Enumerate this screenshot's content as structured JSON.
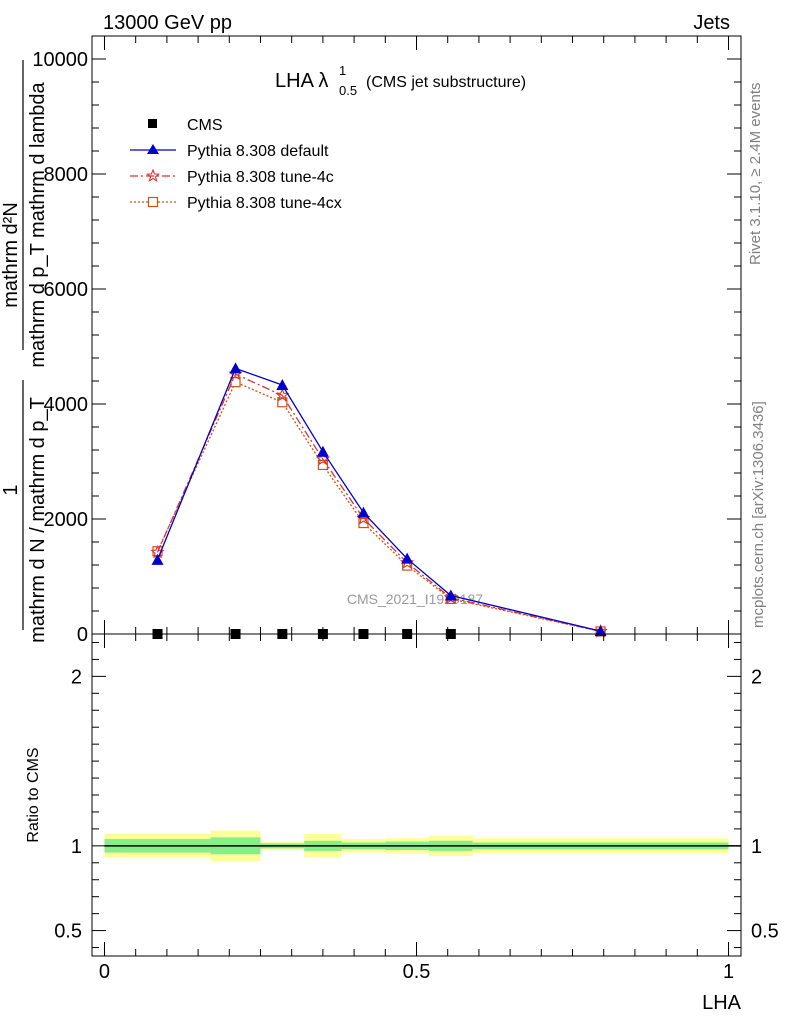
{
  "header": {
    "left": "13000 GeV pp",
    "right": "Jets"
  },
  "side_labels": {
    "rivet": "Rivet 3.1.10, ≥ 2.4M events",
    "mcplots": "mcplots.cern.ch [arXiv:1306.3436]"
  },
  "watermark": "CMS_2021_I1920187",
  "chart_data": [
    {
      "type": "line",
      "panel": "main",
      "title_main": "LHA λ",
      "title_sup": "1",
      "title_sub": "0.5",
      "title_tail": "(CMS jet substructure)",
      "ylabel_lines": [
        "mathrm d²N",
        "mathrm d p_T mathrm d lambda",
        "1",
        "mathrm d N / mathrm d p_T"
      ],
      "ylim": [
        0,
        10400
      ],
      "yticks": [
        0,
        2000,
        4000,
        6000,
        8000,
        10000
      ],
      "ytick_labels": [
        "0",
        "2000",
        "4000",
        "6000",
        "8000",
        "10000"
      ],
      "xlim": [
        -0.02,
        1.02
      ],
      "legend_position": "top-left",
      "legend": [
        {
          "label": "CMS",
          "color": "#000000",
          "marker": "square"
        },
        {
          "label": "Pythia 8.308 default",
          "color": "#0000cc",
          "marker": "triangle",
          "dash": "solid"
        },
        {
          "label": "Pythia 8.308 tune-4c",
          "color": "#dd3333",
          "marker": "star",
          "dash": "dashdot"
        },
        {
          "label": "Pythia 8.308 tune-4cx",
          "color": "#cc5511",
          "marker": "open-square",
          "dash": "dotted"
        }
      ],
      "x": [
        0.085,
        0.21,
        0.285,
        0.35,
        0.415,
        0.485,
        0.555,
        0.795
      ],
      "series": [
        {
          "name": "CMS",
          "values": [
            0,
            0,
            0,
            0,
            0,
            0,
            0,
            null
          ]
        },
        {
          "name": "Pythia 8.308 default",
          "values": [
            1290,
            4620,
            4330,
            3170,
            2110,
            1310,
            670,
            50
          ]
        },
        {
          "name": "Pythia 8.308 tune-4c",
          "values": [
            1420,
            4520,
            4150,
            3040,
            2010,
            1240,
            630,
            45
          ]
        },
        {
          "name": "Pythia 8.308 tune-4cx",
          "values": [
            1440,
            4380,
            4030,
            2940,
            1930,
            1190,
            610,
            45
          ]
        }
      ]
    },
    {
      "type": "area",
      "panel": "ratio",
      "ylabel": "Ratio to CMS",
      "xlabel": "LHA",
      "ylim": [
        0.35,
        2.25
      ],
      "yticks": [
        0.5,
        1,
        2
      ],
      "ytick_labels": [
        "0.5",
        "1",
        "2"
      ],
      "xlim": [
        -0.02,
        1.02
      ],
      "xticks": [
        0,
        0.5,
        1
      ],
      "xtick_labels": [
        "0",
        "0.5",
        "1"
      ],
      "bands": [
        {
          "x0": 0.0,
          "x1": 0.17,
          "inner": [
            0.96,
            1.04
          ],
          "outer": [
            0.93,
            1.07
          ]
        },
        {
          "x0": 0.17,
          "x1": 0.25,
          "inner": [
            0.95,
            1.05
          ],
          "outer": [
            0.91,
            1.09
          ]
        },
        {
          "x0": 0.25,
          "x1": 0.32,
          "inner": [
            0.985,
            1.015
          ],
          "outer": [
            0.975,
            1.025
          ]
        },
        {
          "x0": 0.32,
          "x1": 0.38,
          "inner": [
            0.97,
            1.03
          ],
          "outer": [
            0.93,
            1.07
          ]
        },
        {
          "x0": 0.38,
          "x1": 0.45,
          "inner": [
            0.98,
            1.02
          ],
          "outer": [
            0.96,
            1.04
          ]
        },
        {
          "x0": 0.45,
          "x1": 0.52,
          "inner": [
            0.975,
            1.025
          ],
          "outer": [
            0.955,
            1.045
          ]
        },
        {
          "x0": 0.52,
          "x1": 0.59,
          "inner": [
            0.97,
            1.03
          ],
          "outer": [
            0.94,
            1.06
          ]
        },
        {
          "x0": 0.59,
          "x1": 1.0,
          "inner": [
            0.98,
            1.02
          ],
          "outer": [
            0.955,
            1.045
          ]
        }
      ],
      "reference": 1
    }
  ]
}
